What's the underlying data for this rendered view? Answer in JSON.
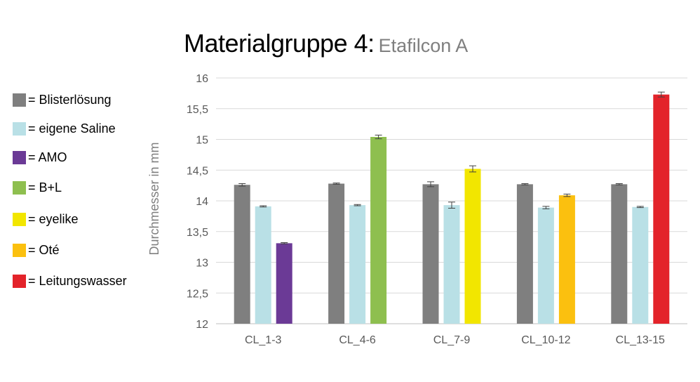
{
  "title": {
    "main": "Materialgruppe 4:",
    "sub": "Etafilcon A"
  },
  "legend": [
    {
      "label": "= Blisterlösung",
      "color": "#7f7f7f"
    },
    {
      "label": "= eigene Saline",
      "color": "#b9e0e6"
    },
    {
      "label": "= AMO",
      "color": "#6b3a96"
    },
    {
      "label": "= B+L",
      "color": "#8ebf4f"
    },
    {
      "label": "= eyelike",
      "color": "#f2e600"
    },
    {
      "label": "= Oté",
      "color": "#fbc00f"
    },
    {
      "label": "= Leitungswasser",
      "color": "#e3232a"
    }
  ],
  "chart_data": {
    "type": "bar",
    "ylabel": "Durchmesser  in mm",
    "ylim": [
      12,
      16
    ],
    "ytick_labels": [
      "12",
      "12,5",
      "13",
      "13,5",
      "14",
      "14,5",
      "15",
      "15,5",
      "16"
    ],
    "grid": true,
    "legend_position": "left",
    "categories": [
      "CL_1-3",
      "CL_4-6",
      "CL_7-9",
      "CL_10-12",
      "CL_13-15"
    ],
    "groups": [
      {
        "category": "CL_1-3",
        "bars": [
          {
            "series": "= Blisterlösung",
            "value": 14.26,
            "error": 0.02,
            "color": "#7f7f7f"
          },
          {
            "series": "= eigene Saline",
            "value": 13.91,
            "error": 0.01,
            "color": "#b9e0e6"
          },
          {
            "series": "= AMO",
            "value": 13.31,
            "error": 0.01,
            "color": "#6b3a96"
          }
        ]
      },
      {
        "category": "CL_4-6",
        "bars": [
          {
            "series": "= Blisterlösung",
            "value": 14.28,
            "error": 0.01,
            "color": "#7f7f7f"
          },
          {
            "series": "= eigene Saline",
            "value": 13.93,
            "error": 0.01,
            "color": "#b9e0e6"
          },
          {
            "series": "= B+L",
            "value": 15.04,
            "error": 0.03,
            "color": "#8ebf4f"
          }
        ]
      },
      {
        "category": "CL_7-9",
        "bars": [
          {
            "series": "= Blisterlösung",
            "value": 14.27,
            "error": 0.04,
            "color": "#7f7f7f"
          },
          {
            "series": "= eigene Saline",
            "value": 13.93,
            "error": 0.05,
            "color": "#b9e0e6"
          },
          {
            "series": "= eyelike",
            "value": 14.52,
            "error": 0.05,
            "color": "#f2e600"
          }
        ]
      },
      {
        "category": "CL_10-12",
        "bars": [
          {
            "series": "= Blisterlösung",
            "value": 14.27,
            "error": 0.01,
            "color": "#7f7f7f"
          },
          {
            "series": "= eigene Saline",
            "value": 13.89,
            "error": 0.02,
            "color": "#b9e0e6"
          },
          {
            "series": "= Oté",
            "value": 14.09,
            "error": 0.02,
            "color": "#fbc00f"
          }
        ]
      },
      {
        "category": "CL_13-15",
        "bars": [
          {
            "series": "= Blisterlösung",
            "value": 14.27,
            "error": 0.01,
            "color": "#7f7f7f"
          },
          {
            "series": "= eigene Saline",
            "value": 13.9,
            "error": 0.01,
            "color": "#b9e0e6"
          },
          {
            "series": "= Leitungswasser",
            "value": 15.73,
            "error": 0.04,
            "color": "#e3232a"
          }
        ]
      }
    ]
  }
}
